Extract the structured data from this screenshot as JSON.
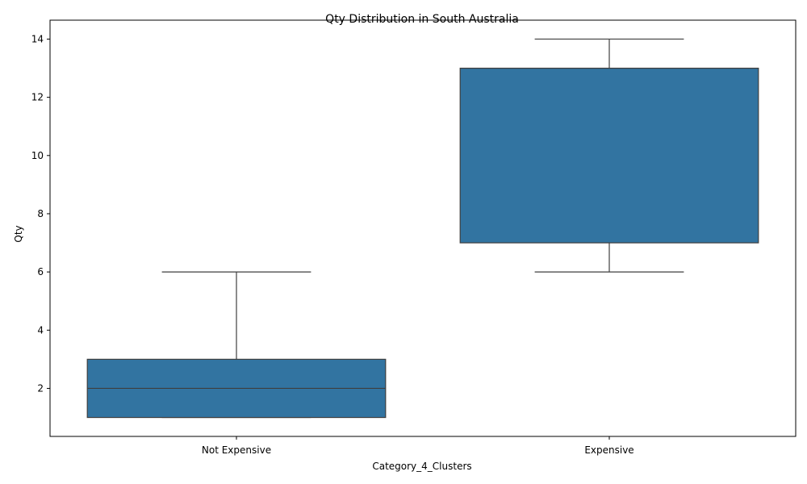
{
  "chart_data": {
    "type": "box",
    "title": "Qty Distribution in South Australia",
    "xlabel": "Category_4_Clusters",
    "ylabel": "Qty",
    "categories": [
      "Not Expensive",
      "Expensive"
    ],
    "boxes": [
      {
        "category": "Not Expensive",
        "whisker_low": 1,
        "q1": 1,
        "median": 2,
        "q3": 3,
        "whisker_high": 6
      },
      {
        "category": "Expensive",
        "whisker_low": 6,
        "q1": 7,
        "median": 13,
        "q3": 13,
        "whisker_high": 14
      }
    ],
    "ylim": [
      0.35,
      14.65
    ],
    "yticks": [
      2,
      4,
      6,
      8,
      10,
      12,
      14
    ],
    "grid": false,
    "legend": "none",
    "box_color": "#3274a1",
    "line_color": "#3f3f3f"
  }
}
